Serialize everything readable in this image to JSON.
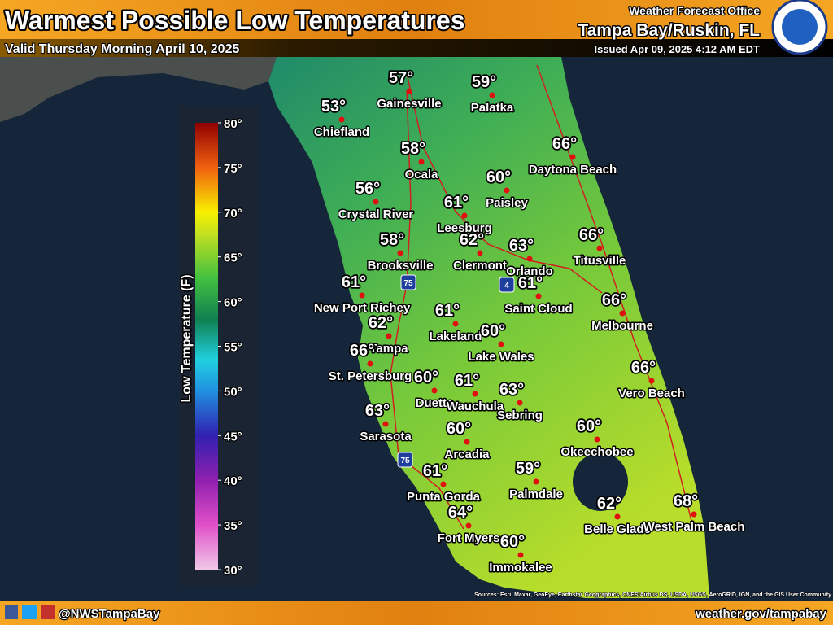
{
  "header": {
    "title": "Warmest Possible Low Temperatures",
    "valid": "Valid Thursday Morning April 10, 2025",
    "office_label": "Weather Forecast Office",
    "office": "Tampa Bay/Ruskin, FL",
    "issued": "Issued Apr 09, 2025 4:12 AM EDT"
  },
  "legend": {
    "title": "Low Temperature (F)",
    "ticks": [
      "80°",
      "75°",
      "70°",
      "65°",
      "60°",
      "55°",
      "50°",
      "45°",
      "40°",
      "35°",
      "30°"
    ]
  },
  "cities": [
    {
      "name": "Gainesville",
      "temp": "57°"
    },
    {
      "name": "Palatka",
      "temp": "59°"
    },
    {
      "name": "Chiefland",
      "temp": "53°"
    },
    {
      "name": "Daytona Beach",
      "temp": "66°"
    },
    {
      "name": "Ocala",
      "temp": "58°"
    },
    {
      "name": "Paisley",
      "temp": "60°"
    },
    {
      "name": "Crystal River",
      "temp": "56°"
    },
    {
      "name": "Leesburg",
      "temp": "61°"
    },
    {
      "name": "Titusville",
      "temp": "66°"
    },
    {
      "name": "Clermont",
      "temp": "62°"
    },
    {
      "name": "Orlando",
      "temp": "63°"
    },
    {
      "name": "Brooksville",
      "temp": "58°"
    },
    {
      "name": "New Port Richey",
      "temp": "61°"
    },
    {
      "name": "Saint Cloud",
      "temp": "61°"
    },
    {
      "name": "Melbourne",
      "temp": "66°"
    },
    {
      "name": "Lakeland",
      "temp": "61°"
    },
    {
      "name": "Tampa",
      "temp": "62°"
    },
    {
      "name": "Lake Wales",
      "temp": "60°"
    },
    {
      "name": "St. Petersburg",
      "temp": "66°"
    },
    {
      "name": "Vero Beach",
      "temp": "66°"
    },
    {
      "name": "Duette",
      "temp": "60°"
    },
    {
      "name": "Wauchula",
      "temp": "61°"
    },
    {
      "name": "Sebring",
      "temp": "63°"
    },
    {
      "name": "Sarasota",
      "temp": "63°"
    },
    {
      "name": "Okeechobee",
      "temp": "60°"
    },
    {
      "name": "Arcadia",
      "temp": "60°"
    },
    {
      "name": "Punta Gorda",
      "temp": "61°"
    },
    {
      "name": "Palmdale",
      "temp": "59°"
    },
    {
      "name": "Belle Glade",
      "temp": "62°"
    },
    {
      "name": "West Palm Beach",
      "temp": "68°"
    },
    {
      "name": "Fort Myers",
      "temp": "64°"
    },
    {
      "name": "Immokalee",
      "temp": "60°"
    }
  ],
  "highways": [
    "75",
    "4",
    "75"
  ],
  "attribution": "Sources: Esri, Maxar, GeoEye, Earthstar Geographics, CNES/Airbus DS, USDA, USGS, AeroGRID, IGN, and the GIS User Community",
  "footer": {
    "handle": "@NWSTampaBay",
    "website": "weather.gov/tampabay"
  }
}
